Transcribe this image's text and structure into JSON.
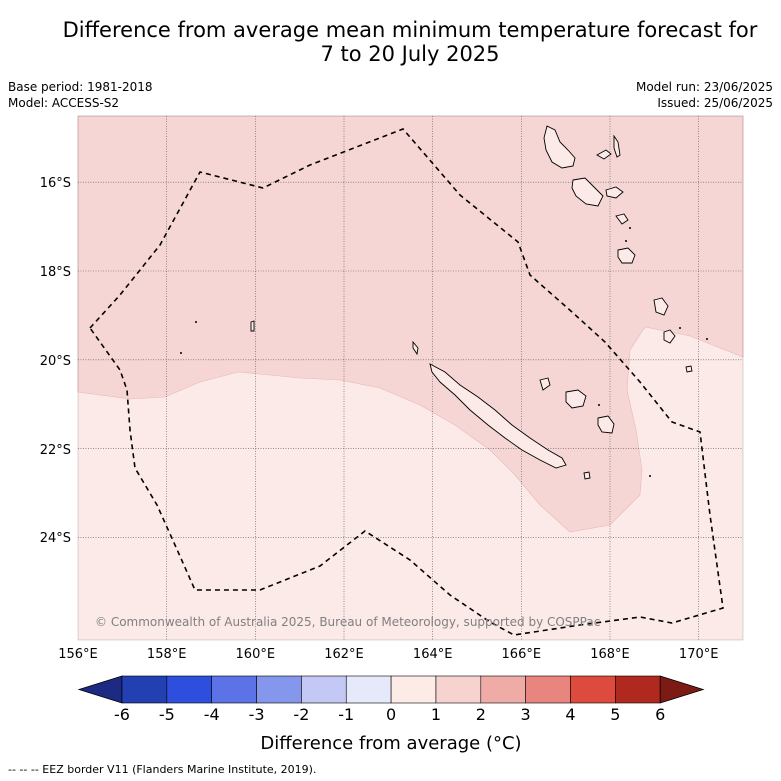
{
  "title_line1": "Difference from average mean minimum temperature forecast for",
  "title_line2": "7 to 20 July 2025",
  "base_period": "Base period: 1981-2018",
  "model": "Model: ACCESS-S2",
  "model_run": "Model run: 23/06/2025",
  "issued": "Issued: 25/06/2025",
  "credit": "© Commonwealth of Australia 2025, Bureau of Meteorology, supported by COSPPac",
  "eez_note": "-- -- -- EEZ border V11 (Flanders Marine Institute, 2019).",
  "map": {
    "lon_range": [
      156,
      171
    ],
    "lat_range": [
      -26.3,
      -14.5
    ],
    "lon_ticks": [
      "156°E",
      "158°E",
      "160°E",
      "162°E",
      "164°E",
      "166°E",
      "168°E",
      "170°E"
    ],
    "lat_ticks": [
      "16°S",
      "18°S",
      "20°S",
      "22°S",
      "24°S"
    ],
    "regions": [
      {
        "category": "1 to 2",
        "color": "#f5d6d4"
      },
      {
        "category": "0 to 1",
        "color": "#fbeae8"
      }
    ]
  },
  "colorbar": {
    "label": "Difference from average (°C)",
    "ticks": [
      "-6",
      "-5",
      "-4",
      "-3",
      "-2",
      "-1",
      "0",
      "1",
      "2",
      "3",
      "4",
      "5",
      "6"
    ],
    "colors": [
      "#1c2a84",
      "#2340b3",
      "#2e4fde",
      "#5b73e6",
      "#8497ec",
      "#c3c9f4",
      "#e6e9fa",
      "#fdebe8",
      "#f6d3cf",
      "#efaca7",
      "#e9857f",
      "#dd4b3e",
      "#b0291f",
      "#7d1a14"
    ]
  }
}
